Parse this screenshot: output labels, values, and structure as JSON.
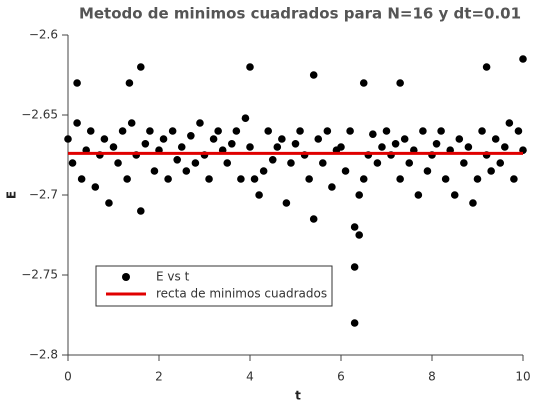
{
  "chart_data": {
    "type": "scatter",
    "title": "Metodo de minimos cuadrados para N=16 y dt=0.01",
    "xlabel": "t",
    "ylabel": "E",
    "xlim": [
      0,
      10
    ],
    "xticks": [
      0,
      2,
      4,
      6,
      8,
      10
    ],
    "ylim": [
      -2.8,
      -2.6
    ],
    "yticks": [
      {
        "value": -2.8,
        "label": "−2.8"
      },
      {
        "value": -2.75,
        "label": "−2.75"
      },
      {
        "value": -2.7,
        "label": "−2.7"
      },
      {
        "value": -2.65,
        "label": "−2.65"
      },
      {
        "value": -2.6,
        "label": "−2.6"
      }
    ],
    "legend": "lower left",
    "series": [
      {
        "name": "E vs t",
        "color": "#000000",
        "mode": "markers",
        "x": [
          0,
          0.1,
          0.2,
          0.3,
          0.4,
          0.5,
          0.6,
          0.7,
          0.8,
          0.9,
          1,
          1.1,
          1.2,
          1.3,
          1.4,
          1.5,
          1.6,
          1.7,
          1.8,
          1.9,
          2,
          2.1,
          2.2,
          2.3,
          2.4,
          2.5,
          2.6,
          2.7,
          2.8,
          2.9,
          3,
          3.1,
          3.2,
          3.3,
          3.4,
          3.5,
          3.6,
          3.7,
          3.8,
          3.9,
          4,
          4.1,
          4.2,
          4.3,
          4.4,
          4.5,
          4.6,
          4.7,
          4.8,
          4.9,
          5,
          5.1,
          5.2,
          5.3,
          5.4,
          5.5,
          5.6,
          5.7,
          5.8,
          5.9,
          6,
          6.1,
          6.2,
          6.3,
          6.4,
          6.5,
          6.6,
          6.7,
          6.8,
          6.9,
          7,
          7.1,
          7.2,
          7.3,
          7.4,
          7.5,
          7.6,
          7.7,
          7.8,
          7.9,
          8,
          8.1,
          8.2,
          8.3,
          8.4,
          8.5,
          8.6,
          8.7,
          8.8,
          8.9,
          9,
          9.1,
          9.2,
          9.3,
          9.4,
          9.5,
          9.6,
          9.7,
          9.8,
          9.9,
          10,
          0.2,
          1.35,
          1.6,
          4.0,
          5.4,
          6.3,
          6.3,
          6.4,
          6.5,
          7.3,
          9.2,
          10
        ],
        "values": [
          -2.665,
          -2.68,
          -2.655,
          -2.69,
          -2.672,
          -2.66,
          -2.695,
          -2.675,
          -2.665,
          -2.705,
          -2.67,
          -2.68,
          -2.66,
          -2.69,
          -2.655,
          -2.675,
          -2.71,
          -2.668,
          -2.66,
          -2.685,
          -2.672,
          -2.665,
          -2.69,
          -2.66,
          -2.678,
          -2.67,
          -2.685,
          -2.663,
          -2.68,
          -2.655,
          -2.675,
          -2.69,
          -2.665,
          -2.66,
          -2.672,
          -2.68,
          -2.668,
          -2.66,
          -2.69,
          -2.652,
          -2.67,
          -2.69,
          -2.7,
          -2.685,
          -2.66,
          -2.678,
          -2.67,
          -2.665,
          -2.705,
          -2.68,
          -2.668,
          -2.66,
          -2.675,
          -2.69,
          -2.715,
          -2.665,
          -2.68,
          -2.66,
          -2.695,
          -2.672,
          -2.67,
          -2.685,
          -2.66,
          -2.72,
          -2.7,
          -2.69,
          -2.675,
          -2.662,
          -2.68,
          -2.67,
          -2.66,
          -2.675,
          -2.668,
          -2.69,
          -2.665,
          -2.68,
          -2.672,
          -2.7,
          -2.66,
          -2.685,
          -2.675,
          -2.668,
          -2.66,
          -2.69,
          -2.672,
          -2.7,
          -2.665,
          -2.68,
          -2.67,
          -2.705,
          -2.69,
          -2.66,
          -2.675,
          -2.685,
          -2.665,
          -2.68,
          -2.67,
          -2.655,
          -2.69,
          -2.66,
          -2.672,
          -2.63,
          -2.63,
          -2.62,
          -2.62,
          -2.625,
          -2.78,
          -2.745,
          -2.725,
          -2.63,
          -2.63,
          -2.62,
          -2.615
        ]
      },
      {
        "name": "recta de minimos cuadrados",
        "color": "#e00000",
        "mode": "line",
        "x": [
          0,
          10
        ],
        "values": [
          -2.674,
          -2.674
        ]
      }
    ]
  }
}
